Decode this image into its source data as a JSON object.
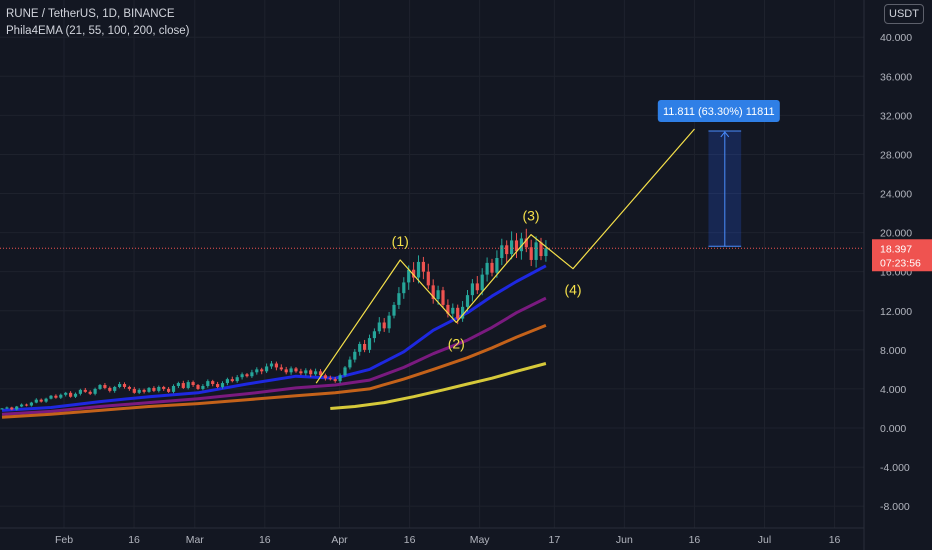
{
  "header": {
    "symbol_line": "RUNE / TetherUS, 1D, BINANCE",
    "indicator_line": "Phila4EMA (21, 55, 100, 200, close)",
    "currency_button": "USDT"
  },
  "colors": {
    "background": "#131722",
    "grid": "#1e222d",
    "axis_text": "#b2b5be",
    "candle_up": "#26a69a",
    "candle_down": "#ef5350",
    "price_line": "#ef5350",
    "ema21": "#1e28e0",
    "ema55": "#7a1a7f",
    "ema100": "#c4621a",
    "ema200": "#d6c93a",
    "elliott": "#f5e04a",
    "measure_box": "#2962ff",
    "measure_label_bg": "#2f7fe6"
  },
  "chart_data": {
    "type": "line",
    "y_axis": {
      "ticks": [
        "40.000",
        "36.000",
        "32.000",
        "28.000",
        "24.000",
        "20.000",
        "16.000",
        "12.000",
        "8.000",
        "4.000",
        "0.000",
        "-4.000",
        "-8.000"
      ],
      "range": [
        -9,
        42
      ]
    },
    "x_axis": {
      "ticks": [
        "Feb",
        "16",
        "Mar",
        "16",
        "Apr",
        "16",
        "May",
        "17",
        "Jun",
        "16",
        "Jul",
        "16"
      ],
      "tick_dates": [
        "2021-02-01",
        "2021-02-16",
        "2021-03-01",
        "2021-03-16",
        "2021-04-01",
        "2021-04-16",
        "2021-05-01",
        "2021-05-17",
        "2021-06-01",
        "2021-06-16",
        "2021-07-01",
        "2021-07-16"
      ]
    },
    "current_price": {
      "value": 18.397,
      "label": "18.397",
      "countdown": "07:23:56"
    },
    "measurement": {
      "label": "11.811 (63.30%) 11811",
      "from_price": 18.6,
      "to_price": 30.4,
      "from_date": "2021-06-19",
      "to_date": "2021-06-26"
    },
    "elliott_wave": {
      "points": [
        {
          "date": "2021-03-27",
          "price": 4.6,
          "label": ""
        },
        {
          "date": "2021-04-14",
          "price": 17.2,
          "label": "(1)"
        },
        {
          "date": "2021-04-26",
          "price": 10.8,
          "label": "(2)"
        },
        {
          "date": "2021-05-12",
          "price": 19.8,
          "label": "(3)"
        },
        {
          "date": "2021-05-21",
          "price": 16.3,
          "label": "(4)"
        },
        {
          "date": "2021-06-16",
          "price": 30.6,
          "label": ""
        }
      ]
    },
    "candles": {
      "closes": [
        2.0,
        2.1,
        1.9,
        2.2,
        2.4,
        2.3,
        2.6,
        2.9,
        2.7,
        3.0,
        3.3,
        3.1,
        3.4,
        3.6,
        3.2,
        3.5,
        3.9,
        3.7,
        3.5,
        4.0,
        4.4,
        4.1,
        3.8,
        4.2,
        4.5,
        4.2,
        4.0,
        3.6,
        3.9,
        3.7,
        4.1,
        3.8,
        4.2,
        4.0,
        3.7,
        4.3,
        4.6,
        4.1,
        4.7,
        4.4,
        4.0,
        4.3,
        4.8,
        4.5,
        4.2,
        4.6,
        5.0,
        4.8,
        5.2,
        5.5,
        5.3,
        5.7,
        6.0,
        5.8,
        6.3,
        6.6,
        6.2,
        6.0,
        5.7,
        6.1,
        5.8,
        5.6,
        5.9,
        5.5,
        5.8,
        5.4,
        5.1,
        5.0,
        4.8,
        5.4,
        6.2,
        7.0,
        7.8,
        8.6,
        8.0,
        9.2,
        9.9,
        10.8,
        10.2,
        11.5,
        12.6,
        13.8,
        14.9,
        16.2,
        15.4,
        17.0,
        16.0,
        14.6,
        13.2,
        14.1,
        12.6,
        11.7,
        12.3,
        11.2,
        12.4,
        13.6,
        14.8,
        14.1,
        15.7,
        16.9,
        15.9,
        17.4,
        18.7,
        17.8,
        19.2,
        18.1,
        19.4,
        18.5,
        17.2,
        19.0,
        17.6,
        18.4
      ],
      "volatility": 0.06
    },
    "series": [
      {
        "key": "ema21",
        "points": [
          [
            0,
            1.8
          ],
          [
            10,
            2.1
          ],
          [
            20,
            2.7
          ],
          [
            30,
            3.2
          ],
          [
            40,
            3.6
          ],
          [
            50,
            4.5
          ],
          [
            60,
            5.3
          ],
          [
            68,
            5.1
          ],
          [
            75,
            6.0
          ],
          [
            82,
            7.8
          ],
          [
            88,
            10.0
          ],
          [
            95,
            11.8
          ],
          [
            100,
            13.5
          ],
          [
            105,
            15.0
          ],
          [
            111,
            16.6
          ]
        ]
      },
      {
        "key": "ema55",
        "points": [
          [
            0,
            1.4
          ],
          [
            10,
            1.7
          ],
          [
            20,
            2.2
          ],
          [
            30,
            2.6
          ],
          [
            40,
            3.0
          ],
          [
            50,
            3.5
          ],
          [
            60,
            4.1
          ],
          [
            68,
            4.4
          ],
          [
            75,
            4.9
          ],
          [
            82,
            6.2
          ],
          [
            88,
            7.6
          ],
          [
            95,
            9.0
          ],
          [
            100,
            10.3
          ],
          [
            105,
            11.8
          ],
          [
            111,
            13.3
          ]
        ]
      },
      {
        "key": "ema100",
        "points": [
          [
            0,
            1.1
          ],
          [
            10,
            1.4
          ],
          [
            20,
            1.8
          ],
          [
            30,
            2.2
          ],
          [
            40,
            2.5
          ],
          [
            50,
            2.9
          ],
          [
            60,
            3.3
          ],
          [
            68,
            3.6
          ],
          [
            75,
            4.0
          ],
          [
            82,
            5.0
          ],
          [
            88,
            6.0
          ],
          [
            95,
            7.2
          ],
          [
            100,
            8.2
          ],
          [
            105,
            9.3
          ],
          [
            111,
            10.5
          ]
        ]
      },
      {
        "key": "ema200",
        "points": [
          [
            67,
            2.0
          ],
          [
            72,
            2.2
          ],
          [
            78,
            2.6
          ],
          [
            84,
            3.2
          ],
          [
            90,
            3.9
          ],
          [
            95,
            4.5
          ],
          [
            100,
            5.1
          ],
          [
            105,
            5.8
          ],
          [
            111,
            6.6
          ]
        ]
      }
    ]
  }
}
